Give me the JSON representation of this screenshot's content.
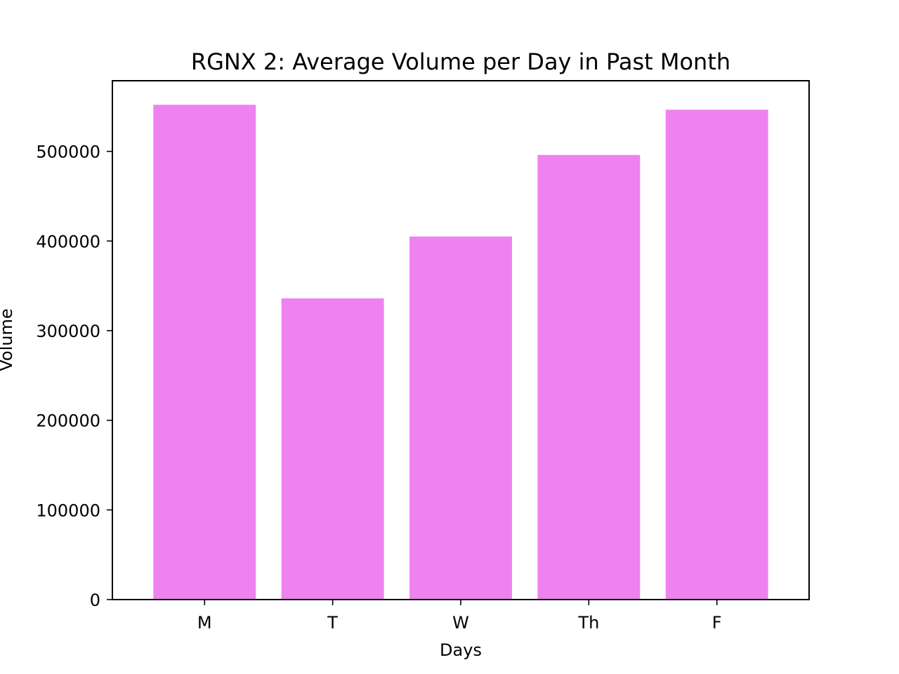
{
  "chart_data": {
    "type": "bar",
    "title": "RGNX 2: Average Volume per Day in Past Month",
    "xlabel": "Days",
    "ylabel": "Volume",
    "categories": [
      "M",
      "T",
      "W",
      "Th",
      "F"
    ],
    "values": [
      552000,
      336000,
      405000,
      496000,
      546500
    ],
    "ylim": [
      0,
      578800
    ],
    "yticks": [
      0,
      100000,
      200000,
      300000,
      400000,
      500000
    ],
    "ytick_labels": [
      "0",
      "100000",
      "200000",
      "300000",
      "400000",
      "500000"
    ],
    "bar_color": "#ee82ee",
    "grid": false,
    "legend": "none"
  }
}
